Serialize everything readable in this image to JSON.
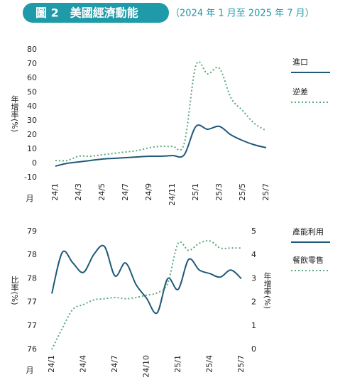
{
  "header": {
    "title": "圖 2　美國經濟動能",
    "subtitle": "（2024 年 1 月至 2025 年 7 月）"
  },
  "chart_data": [
    {
      "type": "line",
      "ylabel": "年增率(%)",
      "xlabel": "月",
      "categories": [
        "24/1",
        null,
        "24/3",
        null,
        "24/5",
        null,
        "24/7",
        null,
        "24/9",
        null,
        "24/11",
        null,
        "25/1",
        null,
        "25/3",
        null,
        "25/5",
        null,
        "25/7"
      ],
      "ylim": [
        -10,
        80
      ],
      "yticks": [
        -10,
        0,
        10,
        20,
        30,
        40,
        50,
        60,
        70,
        80
      ],
      "series": [
        {
          "name": "進口",
          "color": "#1f5a7a",
          "style": "solid",
          "values": [
            -2,
            0,
            1,
            2,
            3,
            3.5,
            4,
            4.5,
            5,
            5,
            5.5,
            6,
            26,
            24,
            26,
            20,
            16,
            13,
            11
          ]
        },
        {
          "name": "逆差",
          "color": "#5aa87a",
          "style": "dotted",
          "values": [
            2,
            2,
            5,
            5,
            6,
            7,
            8,
            9,
            11,
            12,
            12,
            14,
            69,
            63,
            67,
            46,
            37,
            28,
            23
          ]
        }
      ]
    },
    {
      "type": "line",
      "ylabel": "比率(%)",
      "y2label": "年增率(%)",
      "xlabel": "月",
      "categories": [
        "24/1",
        null,
        null,
        "24/4",
        null,
        null,
        "24/7",
        null,
        null,
        "24/10",
        null,
        null,
        "25/1",
        null,
        null,
        "25/4",
        null,
        null,
        "25/7"
      ],
      "ylim": [
        76,
        79
      ],
      "yticks": [
        76,
        {
          "value": 76.6,
          "label": "77"
        },
        {
          "value": 77.2,
          "label": "77"
        },
        {
          "value": 77.8,
          "label": "78"
        },
        {
          "value": 78.4,
          "label": "78"
        },
        79
      ],
      "y2lim": [
        0,
        5
      ],
      "y2ticks": [
        0,
        1,
        2,
        3,
        4,
        5
      ],
      "series": [
        {
          "name": "產能利用",
          "color": "#1f5a7a",
          "style": "solid",
          "values": [
            77.42,
            78.47,
            78.2,
            77.96,
            78.42,
            78.62,
            77.87,
            78.2,
            77.65,
            77.3,
            76.93,
            77.8,
            77.53,
            78.29,
            78.02,
            77.93,
            77.84,
            78.02,
            77.8
          ]
        },
        {
          "name": "餐飲零售",
          "color": "#5aa87a",
          "style": "dotted",
          "axis": "y2",
          "values": [
            0,
            0.9,
            1.7,
            1.9,
            2.1,
            2.15,
            2.2,
            2.15,
            2.2,
            2.3,
            2.4,
            2.8,
            4.5,
            4.2,
            4.5,
            4.6,
            4.3,
            4.3,
            4.3
          ]
        }
      ]
    }
  ]
}
